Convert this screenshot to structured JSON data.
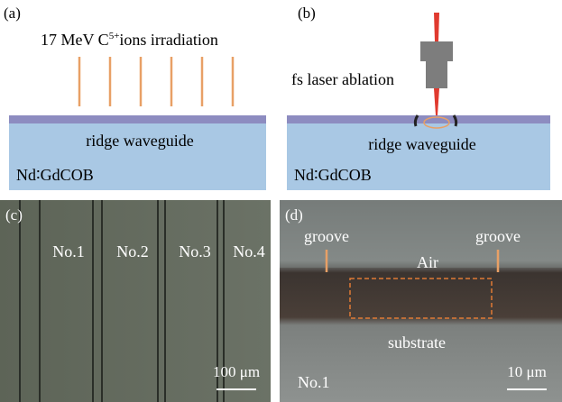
{
  "panels": [
    {
      "label": "(a)",
      "caption": {
        "before": "17 MeV C",
        "sup": "5+",
        "after": "ions irradiation"
      },
      "layer": "ridge waveguide",
      "substrate": "Nd∶GdCOB"
    },
    {
      "label": "(b)",
      "caption": "fs laser ablation",
      "layer": "ridge waveguide",
      "substrate": "Nd∶GdCOB"
    },
    {
      "label": "(c)",
      "marks": [
        "No.1",
        "No.2",
        "No.3",
        "No.4"
      ],
      "scale": "100 μm"
    },
    {
      "label": "(d)",
      "groove_left": "groove",
      "groove_right": "groove",
      "top": "Air",
      "bottom": "substrate",
      "sample": "No.1",
      "scale": "10 μm"
    }
  ]
}
